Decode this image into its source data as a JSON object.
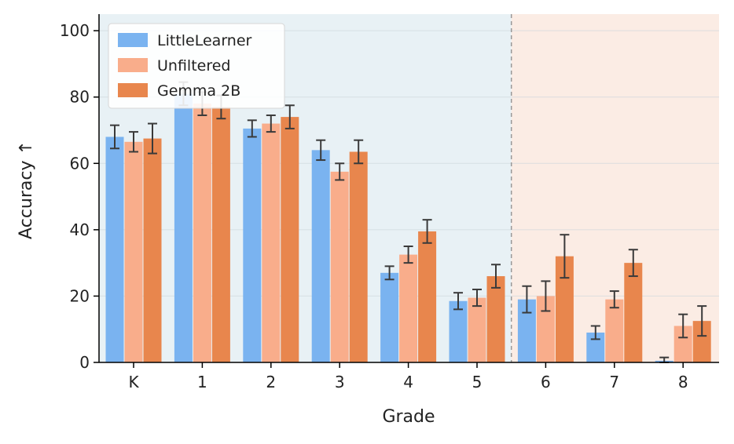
{
  "chart_data": {
    "type": "bar",
    "xlabel": "Grade",
    "ylabel": "Accuracy ↑",
    "categories": [
      "K",
      "1",
      "2",
      "3",
      "4",
      "5",
      "6",
      "7",
      "8"
    ],
    "ylim": [
      0,
      105
    ],
    "yticks": [
      0,
      20,
      40,
      60,
      80,
      100
    ],
    "grid": "horizontal",
    "legend_position": "top-left",
    "shaded_regions": [
      {
        "from_category": "K",
        "to_category": "5",
        "color": "#e8f1f5"
      },
      {
        "from_category": "6",
        "to_category": "8",
        "color": "#fbece4"
      }
    ],
    "divider_between": [
      "5",
      "6"
    ],
    "series": [
      {
        "name": "LittleLearner",
        "color": "#7ab3f0",
        "values": [
          68,
          81,
          70.5,
          64,
          27,
          18.5,
          19,
          9,
          0.5
        ],
        "errors": [
          3.5,
          3.5,
          2.5,
          3,
          2,
          2.5,
          4,
          2,
          1
        ]
      },
      {
        "name": "Unfiltered",
        "color": "#f9ad8b",
        "values": [
          66.5,
          78,
          72,
          57.5,
          32.5,
          19.5,
          20,
          19,
          11
        ],
        "errors": [
          3,
          3.5,
          2.5,
          2.5,
          2.5,
          2.5,
          4.5,
          2.5,
          3.5
        ]
      },
      {
        "name": "Gemma 2B",
        "color": "#e8864d",
        "values": [
          67.5,
          77,
          74,
          63.5,
          39.5,
          26,
          32,
          30,
          12.5
        ],
        "errors": [
          4.5,
          3.5,
          3.5,
          3.5,
          3.5,
          3.5,
          6.5,
          4,
          4.5
        ]
      }
    ]
  }
}
